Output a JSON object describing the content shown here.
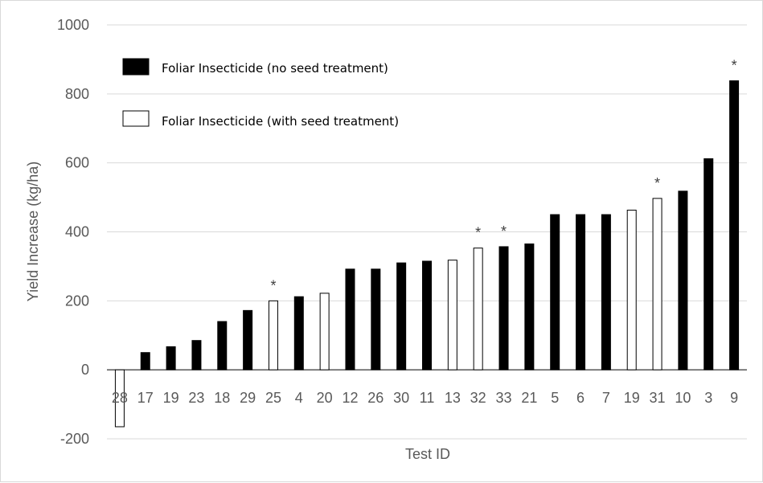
{
  "chart_data": {
    "type": "bar",
    "xlabel": "Test ID",
    "ylabel": "Yield Increase (kg/ha)",
    "ylim": [
      -200,
      1000
    ],
    "yticks": [
      -200,
      0,
      200,
      400,
      600,
      800,
      1000
    ],
    "grid": true,
    "legend_position": "top-left",
    "categories": [
      "28",
      "17",
      "19",
      "23",
      "18",
      "29",
      "25",
      "4",
      "20",
      "12",
      "26",
      "30",
      "11",
      "13",
      "32",
      "33",
      "21",
      "5",
      "6",
      "7",
      "19",
      "31",
      "10",
      "3",
      "9"
    ],
    "values": [
      -165,
      50,
      67,
      85,
      140,
      172,
      200,
      212,
      222,
      292,
      292,
      310,
      315,
      318,
      353,
      357,
      365,
      450,
      450,
      450,
      463,
      497,
      518,
      612,
      838
    ],
    "treatment": [
      "with",
      "no",
      "no",
      "no",
      "no",
      "no",
      "with",
      "no",
      "with",
      "no",
      "no",
      "no",
      "no",
      "with",
      "with",
      "no",
      "no",
      "no",
      "no",
      "no",
      "with",
      "with",
      "no",
      "no",
      "no"
    ],
    "significant": [
      false,
      false,
      false,
      false,
      false,
      false,
      true,
      false,
      false,
      false,
      false,
      false,
      false,
      false,
      true,
      true,
      false,
      false,
      false,
      false,
      false,
      true,
      false,
      false,
      true
    ],
    "significance_marker": "*",
    "series": [
      {
        "key": "no",
        "name": "Foliar Insecticide (no seed treatment)",
        "color": "#000000"
      },
      {
        "key": "with",
        "name": "Foliar Insecticide (with seed treatment)",
        "color": "#ffffff"
      }
    ]
  }
}
